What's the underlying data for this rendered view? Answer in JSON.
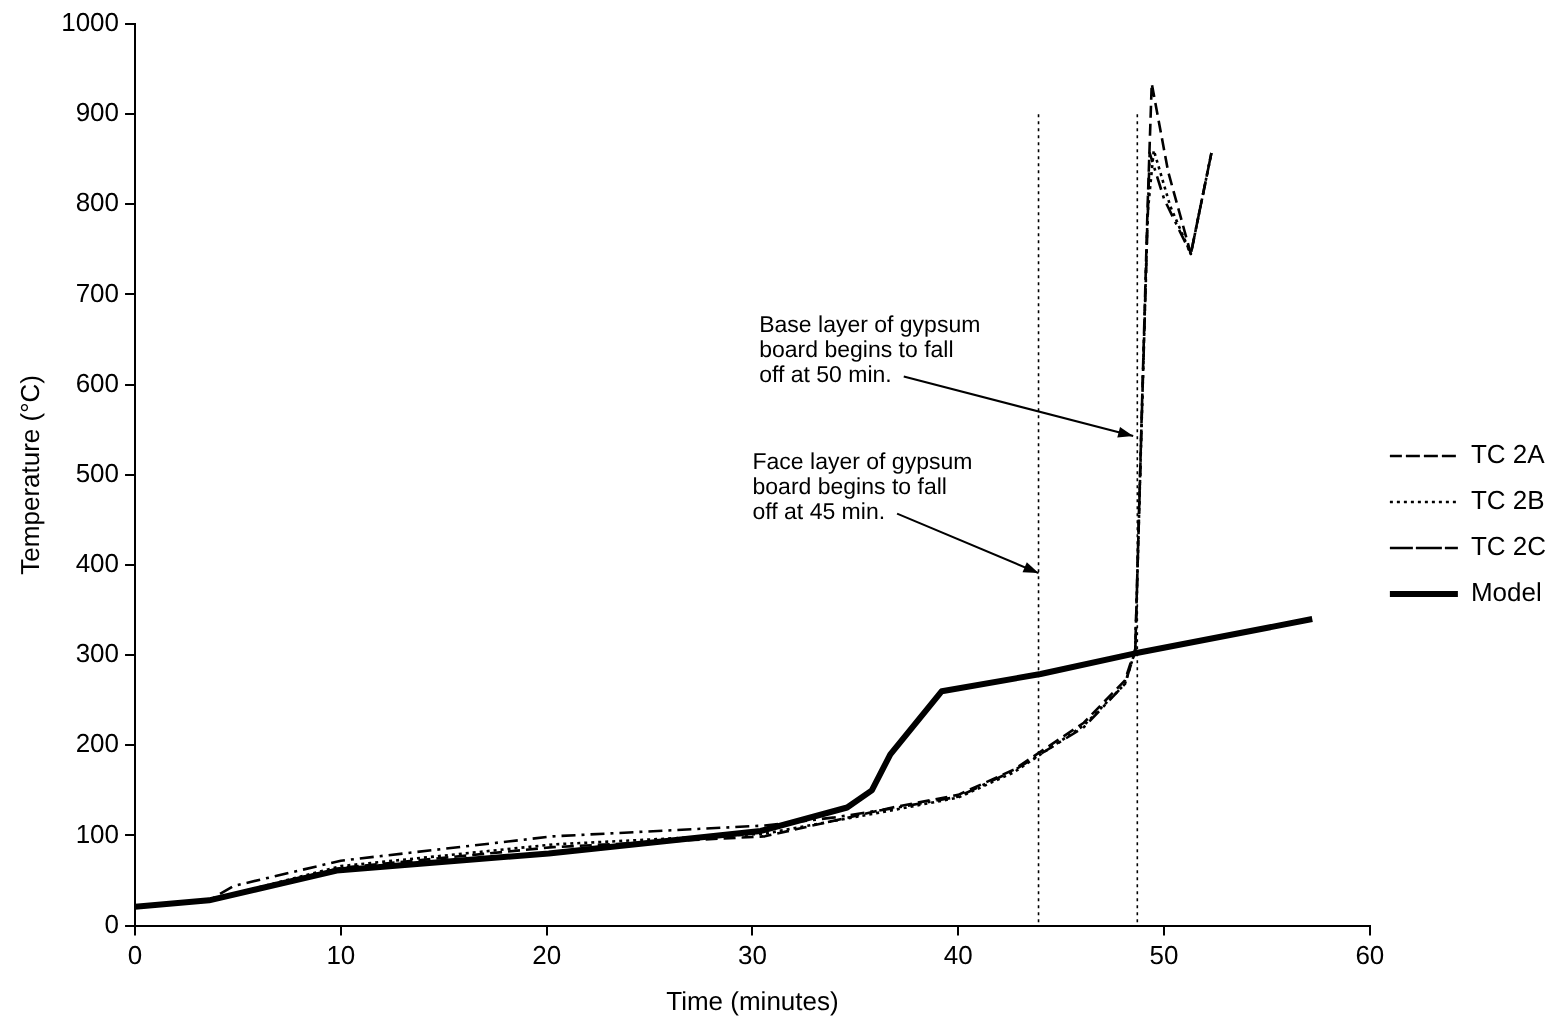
{
  "chart_data": {
    "type": "line",
    "xlabel": "Time (minutes)",
    "ylabel": "Temperature (°C)",
    "xlim": [
      0,
      60
    ],
    "xticks": [
      0,
      10,
      20,
      30,
      40,
      50,
      60
    ],
    "ylim": [
      0,
      1000
    ],
    "yticks": [
      0,
      100,
      200,
      300,
      400,
      500,
      600,
      700,
      800,
      900,
      1000
    ],
    "grid": false,
    "legend": "right",
    "marker": "none",
    "series": [
      {
        "name": "TC 2A",
        "color": "#000000",
        "line_style": "dashed",
        "x": [
          0,
          3.6,
          10,
          20.3,
          30.6,
          36.8,
          40,
          42.7,
          46.1,
          48.1,
          48.6,
          48.9,
          49.2,
          49.4,
          50.2,
          51.3,
          52.3
        ],
        "values": [
          21,
          28,
          64,
          87,
          99,
          131,
          145,
          173,
          225,
          272,
          307,
          555,
          798,
          934,
          836,
          745,
          857
        ]
      },
      {
        "name": "TC 2B",
        "color": "#000000",
        "line_style": "dotted",
        "x": [
          0,
          3.6,
          10,
          20.3,
          30.6,
          36.8,
          40,
          42.7,
          46.1,
          48.1,
          48.6,
          48.9,
          49.2,
          49.5,
          50.3,
          51.3,
          52.3
        ],
        "values": [
          21,
          28,
          66,
          90,
          102,
          128,
          142,
          170,
          222,
          268,
          305,
          550,
          790,
          860,
          798,
          745,
          857
        ]
      },
      {
        "name": "TC 2C",
        "color": "#000000",
        "line_style": "dashdot",
        "x": [
          0,
          3.6,
          4.8,
          10,
          20.3,
          30.6,
          34,
          36.8,
          40,
          42.7,
          46.1,
          48.1,
          48.6,
          48.9,
          49.3,
          50,
          51.3,
          52.3
        ],
        "values": [
          21,
          28,
          44,
          72,
          99,
          111,
          120,
          130,
          143,
          172,
          220,
          268,
          305,
          552,
          857,
          806,
          745,
          857
        ]
      },
      {
        "name": "Model",
        "color": "#000000",
        "line_style": "solid",
        "x": [
          0,
          3.6,
          9.8,
          20.1,
          30.4,
          34.6,
          35.8,
          36.7,
          39.2,
          44,
          48.6,
          57.2
        ],
        "values": [
          21,
          28,
          61,
          80,
          105,
          131,
          150,
          190,
          260,
          279,
          302,
          340
        ]
      }
    ],
    "ref_lines": [
      {
        "axis": "x",
        "value": 43.9,
        "color": "#000000",
        "line_style": "dotted"
      },
      {
        "axis": "x",
        "value": 48.7,
        "color": "#000000",
        "line_style": "dotted"
      }
    ],
    "annotations": [
      {
        "text": "Face layer of gypsum\nboard begins to fall\noff at 45 min.",
        "x": 43.9,
        "y": 391
      },
      {
        "text": "Base layer of gypsum\nboard begins to fall\noff at 50 min.",
        "x": 48.5,
        "y": 543
      }
    ]
  }
}
